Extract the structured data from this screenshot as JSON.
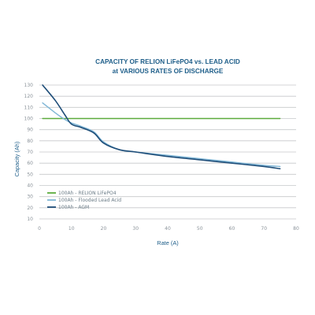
{
  "chart_data": {
    "type": "line",
    "title_lines": [
      "CAPACITY OF RELION LiFePO4 vs. LEAD ACID",
      "at VARIOUS RATES OF DISCHARGE"
    ],
    "xlabel": "Rate (A)",
    "ylabel": "Capacity (Ah)",
    "xlim": [
      0,
      80
    ],
    "ylim": [
      10,
      130
    ],
    "x_ticks": [
      0,
      10,
      20,
      30,
      40,
      50,
      60,
      70,
      80
    ],
    "y_ticks": [
      10,
      20,
      30,
      40,
      50,
      60,
      70,
      80,
      90,
      100,
      110,
      120,
      130
    ],
    "x_tick_labels": [
      "0",
      "10",
      "20",
      "30",
      "40",
      "50",
      "60",
      "70",
      "80"
    ],
    "y_tick_labels": [
      "10",
      "20",
      "30",
      "40",
      "50",
      "60",
      "70",
      "80",
      "90",
      "100",
      "110",
      "120",
      "130"
    ],
    "grid": "horizontal",
    "legend_position": "bottom-left",
    "series": [
      {
        "name": "100Ah - RELION LiFePO4",
        "color": "#5cab3c",
        "x": [
          1,
          75
        ],
        "y": [
          100,
          100
        ]
      },
      {
        "name": "100Ah - Flooded Lead Acid",
        "color": "#7fb6d6",
        "x": [
          1,
          5,
          8,
          10,
          13,
          17,
          20,
          25,
          30,
          40,
          50,
          60,
          70,
          75
        ],
        "y": [
          114,
          105,
          99,
          96,
          93,
          88,
          79,
          72,
          70,
          67,
          64,
          61,
          58,
          57
        ]
      },
      {
        "name": "100Ah - AGM",
        "color": "#1f4e79",
        "x": [
          1,
          5,
          8,
          10,
          13,
          17,
          20,
          25,
          30,
          40,
          50,
          60,
          70,
          75
        ],
        "y": [
          130,
          116,
          103,
          95,
          92,
          87,
          78,
          72,
          70,
          66,
          63,
          60,
          57,
          55
        ]
      }
    ]
  }
}
